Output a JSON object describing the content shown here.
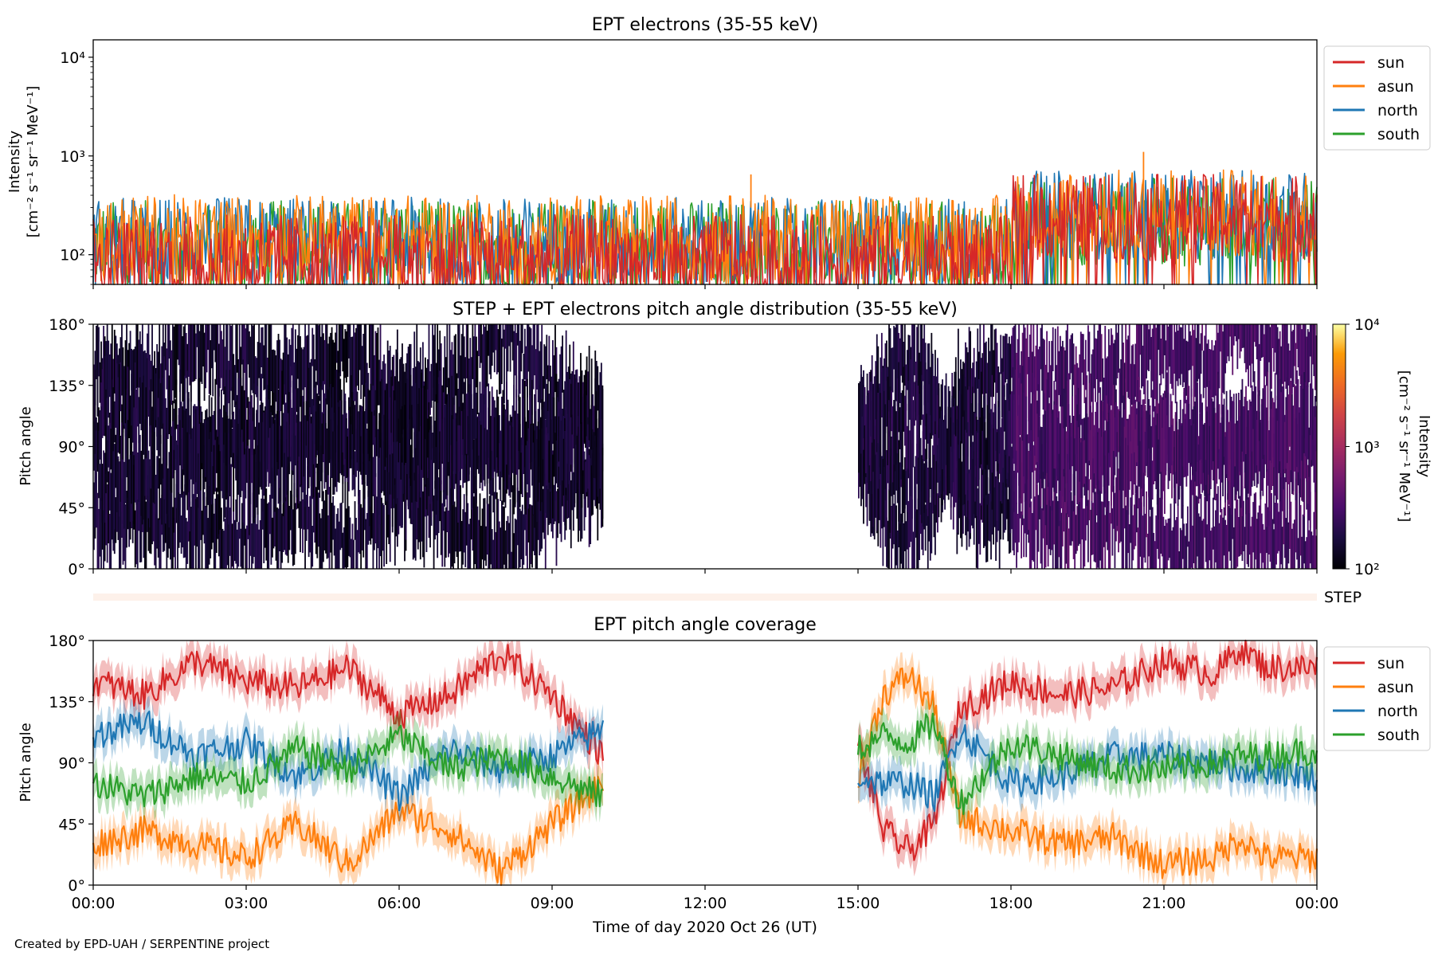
{
  "figure": {
    "footer": "Created by EPD-UAH / SERPENTINE project",
    "xlabel": "Time of day 2020 Oct 26 (UT)",
    "xticks": [
      "00:00",
      "03:00",
      "06:00",
      "09:00",
      "12:00",
      "15:00",
      "18:00",
      "21:00",
      "00:00"
    ]
  },
  "colors": {
    "sun": "#d62728",
    "asun": "#ff7f0e",
    "north": "#1f77b4",
    "south": "#2ca02c",
    "step_band": "#fdf1ea"
  },
  "chart_data": [
    {
      "type": "line",
      "title": "EPT electrons (35-55 keV)",
      "ylabel_line1": "Intensity",
      "ylabel_line2": "[cm⁻² s⁻¹ sr⁻¹ MeV⁻¹]",
      "y_scale": "log",
      "ylim": [
        50,
        15000
      ],
      "yticks": [
        {
          "value": 100,
          "label": "10²"
        },
        {
          "value": 1000,
          "label": "10³"
        },
        {
          "value": 10000,
          "label": "10⁴"
        }
      ],
      "x_unit": "hours",
      "xlim": [
        0,
        24
      ],
      "legend_position": "right-outside-top",
      "series": [
        {
          "name": "sun",
          "color_key": "sun",
          "segments": [
            {
              "start": 0,
              "end": 18,
              "median": 100
            },
            {
              "start": 18,
              "end": 24,
              "median": 260
            }
          ]
        },
        {
          "name": "asun",
          "color_key": "asun",
          "segments": [
            {
              "start": 0,
              "end": 18,
              "median": 160
            },
            {
              "start": 18,
              "end": 24,
              "median": 290
            }
          ]
        },
        {
          "name": "north",
          "color_key": "north",
          "segments": [
            {
              "start": 0,
              "end": 18,
              "median": 150
            },
            {
              "start": 18,
              "end": 24,
              "median": 280
            }
          ]
        },
        {
          "name": "south",
          "color_key": "south",
          "segments": [
            {
              "start": 0,
              "end": 18,
              "median": 140
            },
            {
              "start": 18,
              "end": 24,
              "median": 240
            }
          ]
        }
      ],
      "peak_values": [
        {
          "x": 20.6,
          "y": 1100
        },
        {
          "x": 12.9,
          "y": 650
        }
      ]
    },
    {
      "type": "heatmap",
      "title": "STEP + EPT electrons pitch angle distribution (35-55 keV)",
      "ylabel": "Pitch angle",
      "ylim": [
        0,
        180
      ],
      "yticks": [
        "0°",
        "45°",
        "90°",
        "135°",
        "180°"
      ],
      "colorbar": {
        "label_line1": "Intensity",
        "label_line2": "[cm⁻² s⁻¹ sr⁻¹ MeV⁻¹]",
        "scale": "log",
        "range": [
          100,
          10000
        ],
        "ticks": [
          "10²",
          "10³",
          "10⁴"
        ],
        "colormap": "inferno"
      },
      "data_intervals": [
        {
          "start": 0,
          "end": 10,
          "level": 150
        },
        {
          "start": 15,
          "end": 18,
          "level": 170
        },
        {
          "start": 18,
          "end": 24,
          "level": 300
        }
      ],
      "step_panel_label": "STEP"
    },
    {
      "type": "line",
      "title": "EPT pitch angle coverage",
      "ylabel": "Pitch angle",
      "ylim": [
        0,
        180
      ],
      "yticks": [
        "0°",
        "45°",
        "90°",
        "135°",
        "180°"
      ],
      "legend_position": "right-outside-top",
      "series": [
        {
          "name": "sun",
          "color_key": "sun",
          "x": [
            0,
            1,
            2,
            3,
            4,
            5,
            6,
            7,
            8,
            9,
            10,
            15,
            15.5,
            16,
            16.5,
            17,
            18,
            19,
            20,
            21,
            22,
            22.5,
            23,
            24
          ],
          "y": [
            150,
            140,
            165,
            150,
            145,
            160,
            125,
            140,
            170,
            140,
            95,
            105,
            40,
            25,
            45,
            130,
            150,
            140,
            145,
            165,
            155,
            175,
            160,
            160
          ]
        },
        {
          "name": "asun",
          "color_key": "asun",
          "x": [
            0,
            1,
            2,
            3,
            4,
            5,
            6,
            7,
            8,
            9,
            10,
            15,
            15.5,
            16,
            16.5,
            17,
            18,
            19,
            20,
            21,
            22,
            22.5,
            23,
            24
          ],
          "y": [
            30,
            40,
            30,
            20,
            45,
            15,
            55,
            40,
            10,
            45,
            75,
            80,
            140,
            155,
            130,
            50,
            40,
            30,
            35,
            15,
            20,
            35,
            20,
            20
          ]
        },
        {
          "name": "north",
          "color_key": "north",
          "x": [
            0,
            1,
            2,
            3,
            4,
            5,
            6,
            7,
            8,
            9,
            10,
            15,
            15.5,
            16,
            16.5,
            17,
            18,
            19,
            20,
            21,
            22,
            22.5,
            23,
            24
          ],
          "y": [
            110,
            120,
            95,
            105,
            80,
            100,
            65,
            100,
            85,
            95,
            115,
            80,
            75,
            75,
            65,
            115,
            75,
            80,
            95,
            95,
            90,
            85,
            85,
            80
          ]
        },
        {
          "name": "south",
          "color_key": "south",
          "x": [
            0,
            1,
            2,
            3,
            4,
            5,
            6,
            7,
            8,
            9,
            10,
            15,
            15.5,
            16,
            16.5,
            17,
            18,
            19,
            20,
            21,
            22,
            22.5,
            23,
            24
          ],
          "y": [
            75,
            65,
            80,
            75,
            100,
            85,
            110,
            85,
            95,
            80,
            65,
            100,
            110,
            105,
            120,
            60,
            105,
            95,
            85,
            85,
            90,
            95,
            95,
            100
          ]
        }
      ],
      "band_width_deg": 12
    }
  ]
}
